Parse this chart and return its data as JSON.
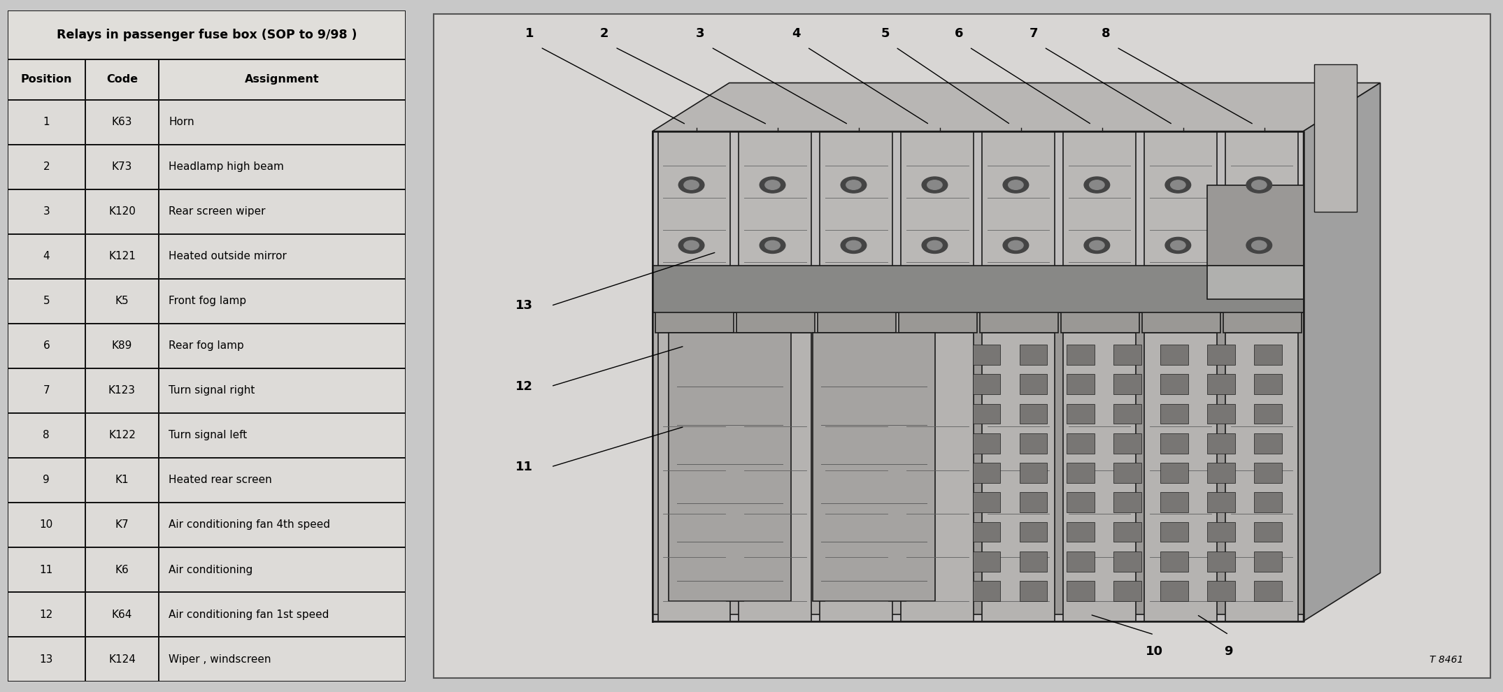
{
  "title": "Relays in passenger fuse box (SOP to 9/98 )",
  "col_headers": [
    "Position",
    "Code",
    "Assignment"
  ],
  "rows": [
    [
      "1",
      "K63",
      "Horn"
    ],
    [
      "2",
      "K73",
      "Headlamp high beam"
    ],
    [
      "3",
      "K120",
      "Rear screen wiper"
    ],
    [
      "4",
      "K121",
      "Heated outside mirror"
    ],
    [
      "5",
      "K5",
      "Front fog lamp"
    ],
    [
      "6",
      "K89",
      "Rear fog lamp"
    ],
    [
      "7",
      "K123",
      "Turn signal right"
    ],
    [
      "8",
      "K122",
      "Turn signal left"
    ],
    [
      "9",
      "K1",
      "Heated rear screen"
    ],
    [
      "10",
      "K7",
      "Air conditioning fan 4th speed"
    ],
    [
      "11",
      "K6",
      "Air conditioning"
    ],
    [
      "12",
      "K64",
      "Air conditioning fan 1st speed"
    ],
    [
      "13",
      "K124",
      "Wiper , windscreen"
    ]
  ],
  "bg_color": "#c8c8c8",
  "table_bg": "#e0deda",
  "header_bg": "#d0ccc8",
  "data_row_bg": "#dddbd8",
  "border_color": "#111111",
  "text_color": "#000000",
  "ref_code": "T 8461",
  "diagram_bg": "#c0bfbd",
  "diagram_inner_bg": "#d8d6d4",
  "diagram_labels_top": [
    "1",
    "2",
    "3",
    "4",
    "5",
    "6",
    "7",
    "8"
  ],
  "diagram_labels_left": [
    "13",
    "12",
    "11"
  ],
  "diagram_labels_bottom": [
    "10",
    "9"
  ]
}
